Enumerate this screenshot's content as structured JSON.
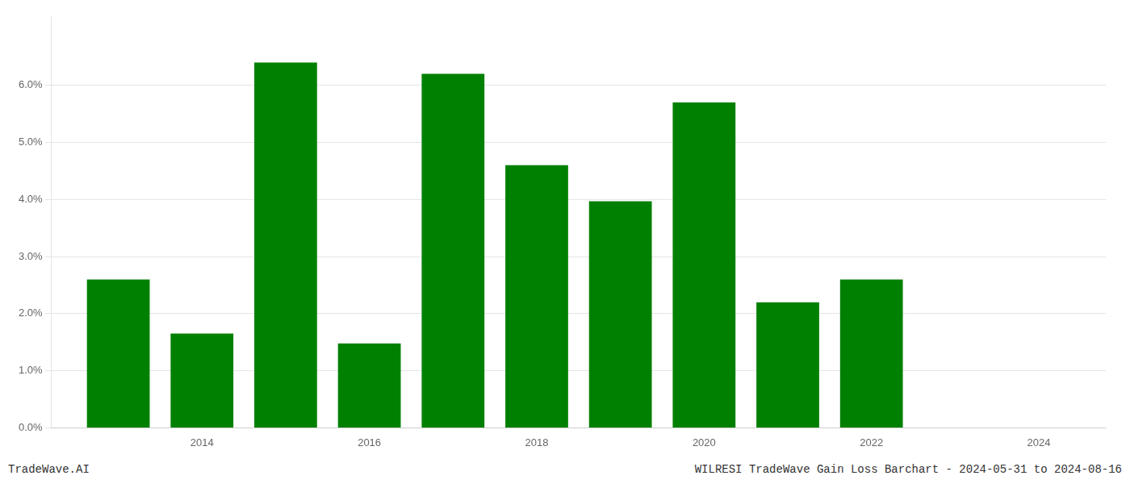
{
  "chart_data": {
    "type": "bar",
    "x": [
      2013,
      2014,
      2015,
      2016,
      2017,
      2018,
      2019,
      2020,
      2021,
      2022
    ],
    "values": [
      0.026,
      0.0165,
      0.064,
      0.0148,
      0.062,
      0.046,
      0.0397,
      0.057,
      0.022,
      0.026
    ],
    "color": "#008000",
    "xlim": [
      2012.2,
      2024.8
    ],
    "xticks": [
      2014,
      2016,
      2018,
      2020,
      2022,
      2024
    ],
    "ylim": [
      0.0,
      0.072
    ],
    "yticks": [
      {
        "value": 0.0,
        "label": "0.0%"
      },
      {
        "value": 0.01,
        "label": "1.0%"
      },
      {
        "value": 0.02,
        "label": "2.0%"
      },
      {
        "value": 0.03,
        "label": "3.0%"
      },
      {
        "value": 0.04,
        "label": "4.0%"
      },
      {
        "value": 0.05,
        "label": "5.0%"
      },
      {
        "value": 0.06,
        "label": "6.0%"
      }
    ],
    "grid": true,
    "annotations": [
      "TradeWave.AI",
      "WILRESI TradeWave Gain Loss Barchart - 2024-05-31 to 2024-08-16"
    ]
  }
}
